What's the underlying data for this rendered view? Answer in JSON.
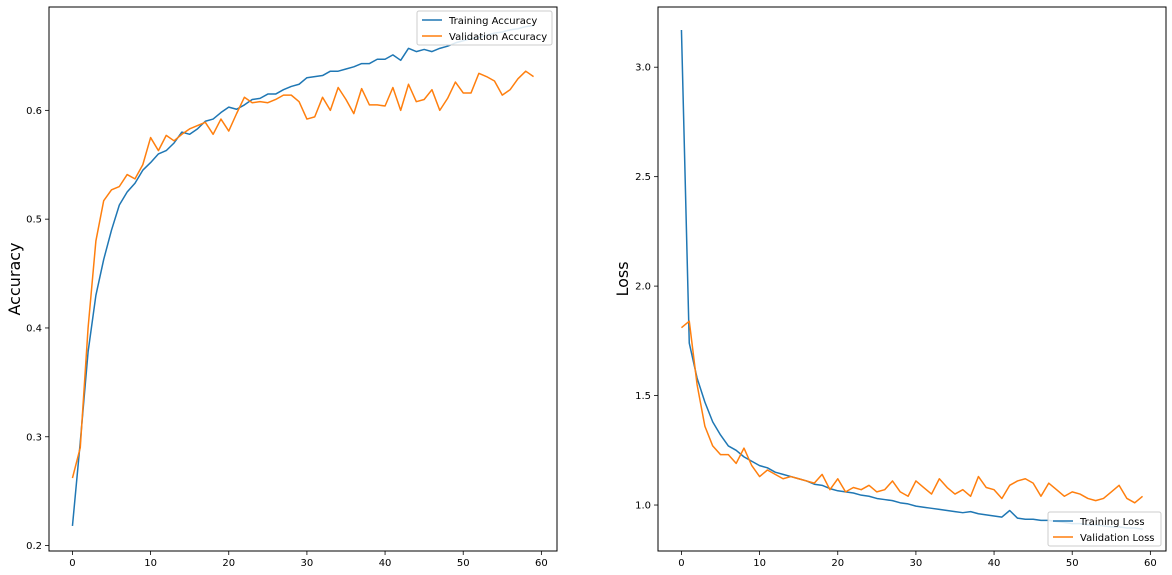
{
  "chart_data": [
    {
      "type": "line",
      "title": "",
      "xlabel": "",
      "ylabel": "Accuracy",
      "xlim": [
        -3,
        62
      ],
      "ylim": [
        0.195,
        0.695
      ],
      "xticks": [
        0,
        10,
        20,
        30,
        40,
        50,
        60
      ],
      "yticks": [
        0.2,
        0.3,
        0.4,
        0.5,
        0.6
      ],
      "xtick_labels": [
        "0",
        "10",
        "20",
        "30",
        "40",
        "50",
        "60"
      ],
      "ytick_labels": [
        "0.2",
        "0.3",
        "0.4",
        "0.5",
        "0.6"
      ],
      "grid": false,
      "legend_position": "upper right",
      "series": [
        {
          "name": "Training Accuracy",
          "color": "#1f77b4",
          "x": [
            0,
            1,
            2,
            3,
            4,
            5,
            6,
            7,
            8,
            9,
            10,
            11,
            12,
            13,
            14,
            15,
            16,
            17,
            18,
            19,
            20,
            21,
            22,
            23,
            24,
            25,
            26,
            27,
            28,
            29,
            30,
            31,
            32,
            33,
            34,
            35,
            36,
            37,
            38,
            39,
            40,
            41,
            42,
            43,
            44,
            45,
            46,
            47,
            48,
            49,
            50,
            51,
            52,
            53,
            54,
            55,
            56,
            57,
            58,
            59
          ],
          "values": [
            0.218,
            0.295,
            0.378,
            0.43,
            0.463,
            0.49,
            0.513,
            0.525,
            0.533,
            0.545,
            0.552,
            0.56,
            0.563,
            0.57,
            0.58,
            0.578,
            0.583,
            0.59,
            0.592,
            0.598,
            0.603,
            0.601,
            0.605,
            0.61,
            0.611,
            0.615,
            0.615,
            0.619,
            0.622,
            0.624,
            0.63,
            0.631,
            0.632,
            0.636,
            0.636,
            0.638,
            0.64,
            0.643,
            0.643,
            0.647,
            0.647,
            0.651,
            0.646,
            0.657,
            0.654,
            0.656,
            0.654,
            0.657,
            0.659,
            0.662,
            0.664,
            0.666,
            0.667,
            0.669,
            0.671,
            0.672,
            0.674,
            0.675,
            0.677,
            0.678
          ]
        },
        {
          "name": "Validation Accuracy",
          "color": "#ff7f0e",
          "x": [
            0,
            1,
            2,
            3,
            4,
            5,
            6,
            7,
            8,
            9,
            10,
            11,
            12,
            13,
            14,
            15,
            16,
            17,
            18,
            19,
            20,
            21,
            22,
            23,
            24,
            25,
            26,
            27,
            28,
            29,
            30,
            31,
            32,
            33,
            34,
            35,
            36,
            37,
            38,
            39,
            40,
            41,
            42,
            43,
            44,
            45,
            46,
            47,
            48,
            49,
            50,
            51,
            52,
            53,
            54,
            55,
            56,
            57,
            58,
            59
          ],
          "values": [
            0.262,
            0.29,
            0.4,
            0.48,
            0.517,
            0.527,
            0.53,
            0.541,
            0.537,
            0.55,
            0.575,
            0.563,
            0.577,
            0.572,
            0.578,
            0.583,
            0.586,
            0.589,
            0.578,
            0.592,
            0.581,
            0.597,
            0.612,
            0.607,
            0.608,
            0.607,
            0.61,
            0.614,
            0.614,
            0.608,
            0.592,
            0.594,
            0.612,
            0.6,
            0.621,
            0.61,
            0.597,
            0.62,
            0.605,
            0.605,
            0.604,
            0.621,
            0.6,
            0.624,
            0.608,
            0.61,
            0.619,
            0.6,
            0.611,
            0.626,
            0.616,
            0.616,
            0.634,
            0.631,
            0.627,
            0.614,
            0.619,
            0.629,
            0.636,
            0.631
          ]
        }
      ]
    },
    {
      "type": "line",
      "title": "",
      "xlabel": "",
      "ylabel": "Loss",
      "xlim": [
        -3,
        62
      ],
      "ylim": [
        0.79,
        3.275
      ],
      "xticks": [
        0,
        10,
        20,
        30,
        40,
        50,
        60
      ],
      "yticks": [
        1.0,
        1.5,
        2.0,
        2.5,
        3.0
      ],
      "xtick_labels": [
        "0",
        "10",
        "20",
        "30",
        "40",
        "50",
        "60"
      ],
      "ytick_labels": [
        "1.0",
        "1.5",
        "2.0",
        "2.5",
        "3.0"
      ],
      "grid": false,
      "legend_position": "lower right",
      "series": [
        {
          "name": "Training Loss",
          "color": "#1f77b4",
          "x": [
            0,
            1,
            2,
            3,
            4,
            5,
            6,
            7,
            8,
            9,
            10,
            11,
            12,
            13,
            14,
            15,
            16,
            17,
            18,
            19,
            20,
            21,
            22,
            23,
            24,
            25,
            26,
            27,
            28,
            29,
            30,
            31,
            32,
            33,
            34,
            35,
            36,
            37,
            38,
            39,
            40,
            41,
            42,
            43,
            44,
            45,
            46,
            47,
            48,
            49,
            50,
            51,
            52,
            53,
            54,
            55,
            56,
            57,
            58,
            59
          ],
          "values": [
            3.17,
            1.74,
            1.58,
            1.47,
            1.38,
            1.32,
            1.27,
            1.25,
            1.22,
            1.2,
            1.18,
            1.17,
            1.15,
            1.14,
            1.13,
            1.12,
            1.11,
            1.095,
            1.09,
            1.075,
            1.065,
            1.06,
            1.055,
            1.045,
            1.04,
            1.03,
            1.025,
            1.02,
            1.01,
            1.005,
            0.995,
            0.99,
            0.985,
            0.98,
            0.975,
            0.97,
            0.965,
            0.97,
            0.96,
            0.955,
            0.95,
            0.945,
            0.975,
            0.94,
            0.935,
            0.935,
            0.93,
            0.93,
            0.925,
            0.92,
            0.915,
            0.915,
            0.91,
            0.91,
            0.905,
            0.9,
            0.9,
            0.895,
            0.895,
            0.89
          ]
        },
        {
          "name": "Validation Loss",
          "color": "#ff7f0e",
          "x": [
            0,
            1,
            2,
            3,
            4,
            5,
            6,
            7,
            8,
            9,
            10,
            11,
            12,
            13,
            14,
            15,
            16,
            17,
            18,
            19,
            20,
            21,
            22,
            23,
            24,
            25,
            26,
            27,
            28,
            29,
            30,
            31,
            32,
            33,
            34,
            35,
            36,
            37,
            38,
            39,
            40,
            41,
            42,
            43,
            44,
            45,
            46,
            47,
            48,
            49,
            50,
            51,
            52,
            53,
            54,
            55,
            56,
            57,
            58,
            59
          ],
          "values": [
            1.81,
            1.84,
            1.55,
            1.36,
            1.27,
            1.23,
            1.23,
            1.19,
            1.26,
            1.18,
            1.13,
            1.16,
            1.14,
            1.12,
            1.13,
            1.12,
            1.11,
            1.1,
            1.14,
            1.07,
            1.12,
            1.06,
            1.08,
            1.07,
            1.09,
            1.06,
            1.07,
            1.11,
            1.06,
            1.04,
            1.11,
            1.08,
            1.05,
            1.12,
            1.08,
            1.05,
            1.07,
            1.04,
            1.13,
            1.08,
            1.07,
            1.03,
            1.09,
            1.11,
            1.12,
            1.1,
            1.04,
            1.1,
            1.07,
            1.04,
            1.06,
            1.05,
            1.03,
            1.02,
            1.03,
            1.06,
            1.09,
            1.03,
            1.01,
            1.04
          ]
        }
      ]
    }
  ]
}
